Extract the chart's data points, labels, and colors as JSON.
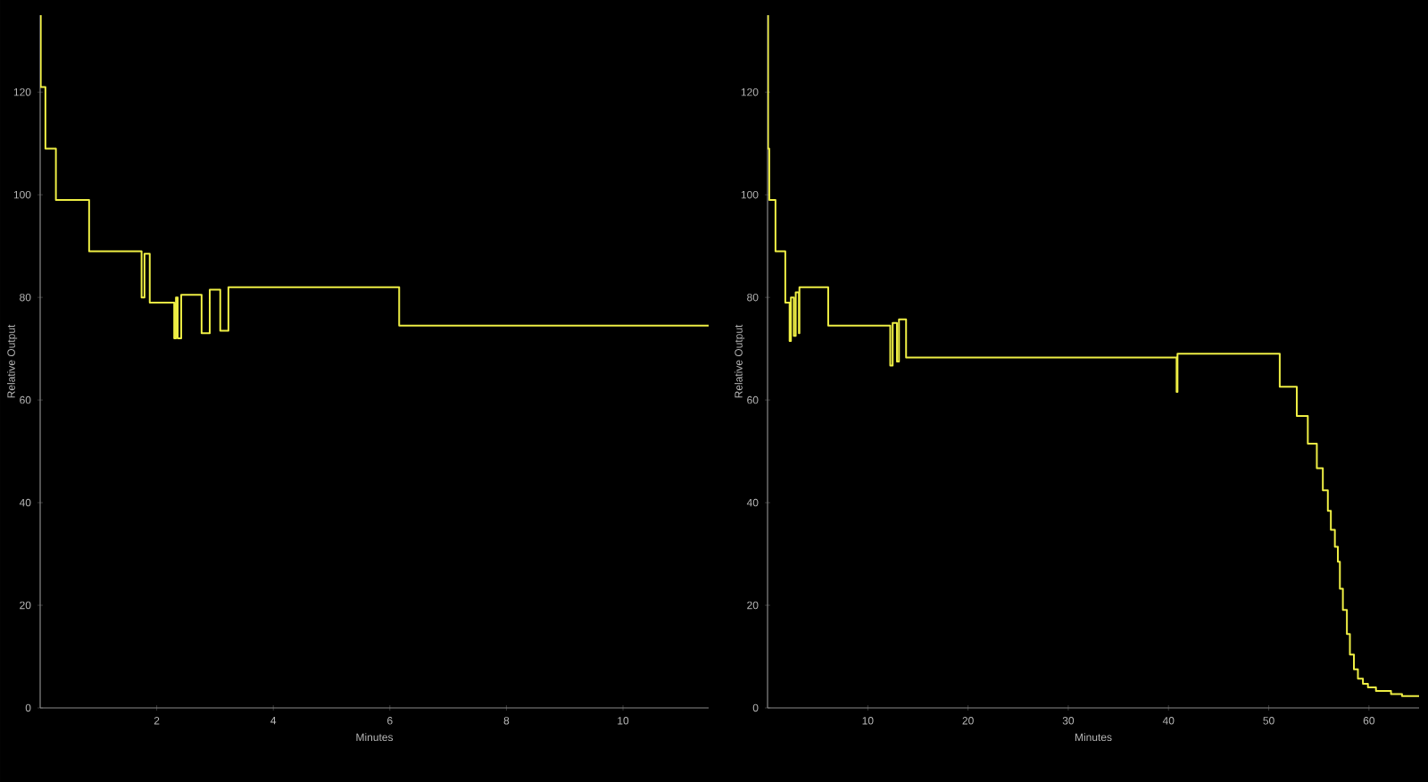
{
  "chart_data": [
    {
      "type": "step",
      "xlabel": "Minutes",
      "ylabel": "Relative Output",
      "xlim": [
        0,
        11.47
      ],
      "ylim": [
        0,
        135
      ],
      "xticks": [
        2,
        4,
        6,
        8,
        10
      ],
      "yticks": [
        0,
        20,
        40,
        60,
        80,
        100,
        120
      ],
      "series": [
        {
          "color": "#eeee44",
          "x": [
            0,
            0.01,
            0.09,
            0.27,
            0.84,
            1.74,
            1.79,
            1.88,
            2.3,
            2.33,
            2.36,
            2.42,
            2.77,
            2.91,
            3.09,
            3.23,
            6.16,
            11.47
          ],
          "values": [
            135,
            121,
            109,
            99,
            89,
            80,
            88.5,
            79,
            72,
            80,
            72,
            80.5,
            73,
            81.5,
            73.5,
            82,
            74.5,
            74.5
          ]
        }
      ]
    },
    {
      "type": "step",
      "xlabel": "Minutes",
      "ylabel": "Relative Output",
      "xlim": [
        0,
        65
      ],
      "ylim": [
        0,
        135
      ],
      "xticks": [
        10,
        20,
        30,
        40,
        50,
        60
      ],
      "yticks": [
        0,
        20,
        40,
        60,
        80,
        100,
        120
      ],
      "series": [
        {
          "color": "#eeee44",
          "x": [
            0,
            0.05,
            0.17,
            0.79,
            1.77,
            2.2,
            2.33,
            2.62,
            2.81,
            3.13,
            3.18,
            6.05,
            12.24,
            12.48,
            12.91,
            13.11,
            13.82,
            40.81,
            40.9,
            51.1,
            52.8,
            53.9,
            54.8,
            55.4,
            55.9,
            56.2,
            56.6,
            56.9,
            57.1,
            57.4,
            57.8,
            58.1,
            58.5,
            58.9,
            59.4,
            59.9,
            60.7,
            62.2,
            63.3,
            65
          ],
          "values": [
            135,
            109,
            99,
            89,
            79,
            71.5,
            80,
            72.5,
            81,
            73,
            82,
            74.5,
            66.7,
            75,
            67.5,
            75.7,
            68.3,
            61.6,
            69,
            62.6,
            56.9,
            51.5,
            46.7,
            42.4,
            38.4,
            34.7,
            31.4,
            28.5,
            23.2,
            19.1,
            14.4,
            10.4,
            7.5,
            5.7,
            4.7,
            4.0,
            3.3,
            2.7,
            2.3,
            2.3
          ]
        }
      ]
    }
  ]
}
